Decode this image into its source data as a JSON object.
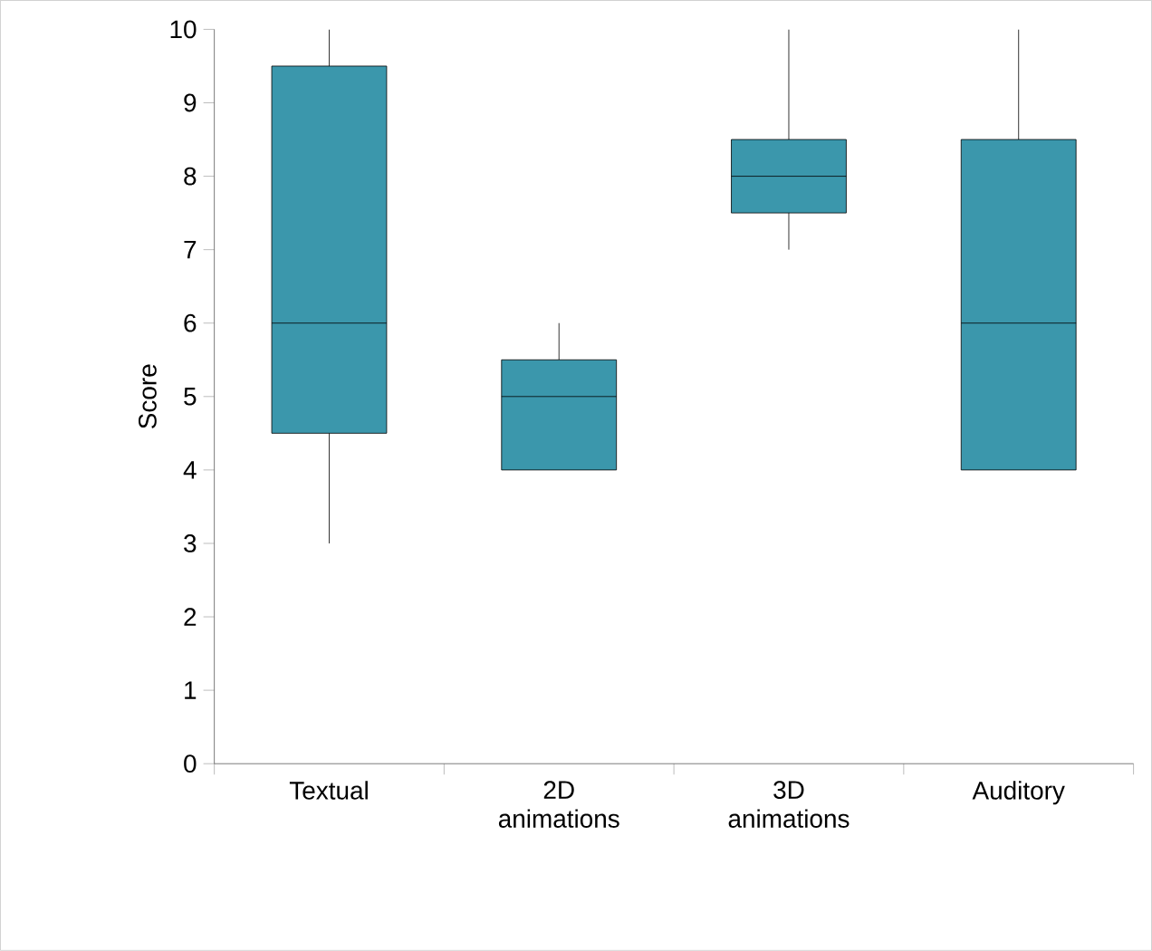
{
  "chart_data": {
    "type": "box",
    "ylabel": "Score",
    "categories": [
      "Textual",
      "2D animations",
      "3D animations",
      "Auditory"
    ],
    "color": "#3b97ac",
    "ylim": [
      0,
      10
    ],
    "yticks": [
      0,
      1,
      2,
      3,
      4,
      5,
      6,
      7,
      8,
      9,
      10
    ],
    "boxes": [
      {
        "low": 3,
        "q1": 4.5,
        "median": 6,
        "q3": 9.5,
        "high": 10
      },
      {
        "low": 4,
        "q1": 4,
        "median": 5,
        "q3": 5.5,
        "high": 6
      },
      {
        "low": 7,
        "q1": 7.5,
        "median": 8,
        "q3": 8.5,
        "high": 10
      },
      {
        "low": 4,
        "q1": 4,
        "median": 6,
        "q3": 8.5,
        "high": 10
      }
    ]
  }
}
